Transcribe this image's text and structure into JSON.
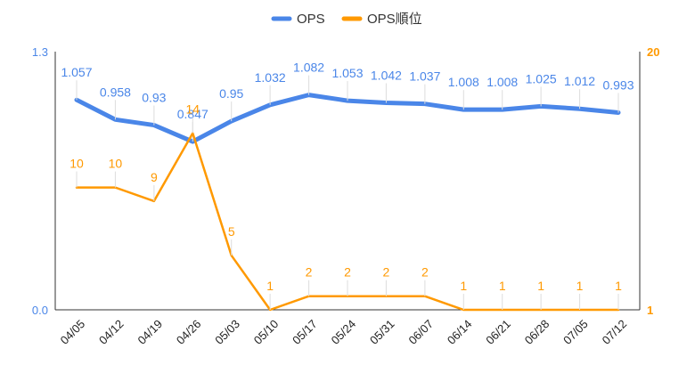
{
  "chart_data": {
    "type": "line",
    "categories": [
      "04/05",
      "04/12",
      "04/19",
      "04/26",
      "05/03",
      "05/10",
      "05/17",
      "05/24",
      "05/31",
      "06/07",
      "06/14",
      "06/21",
      "06/28",
      "07/05",
      "07/12"
    ],
    "series": [
      {
        "name": "OPS",
        "axis": "left",
        "color": "#4a86e8",
        "values": [
          1.057,
          0.958,
          0.93,
          0.847,
          0.95,
          1.032,
          1.082,
          1.053,
          1.042,
          1.037,
          1.008,
          1.008,
          1.025,
          1.012,
          0.993
        ],
        "labels": [
          "1.057",
          "0.958",
          "0.93",
          "0.847",
          "0.95",
          "1.032",
          "1.082",
          "1.053",
          "1.042",
          "1.037",
          "1.008",
          "1.008",
          "1.025",
          "1.012",
          "0.993"
        ]
      },
      {
        "name": "OPS順位",
        "axis": "right",
        "color": "#ff9900",
        "values": [
          10,
          10,
          9,
          14,
          5,
          1,
          2,
          2,
          2,
          2,
          1,
          1,
          1,
          1,
          1
        ],
        "labels": [
          "10",
          "10",
          "9",
          "14",
          "5",
          "1",
          "2",
          "2",
          "2",
          "2",
          "1",
          "1",
          "1",
          "1",
          "1"
        ]
      }
    ],
    "left_axis": {
      "min": 0.0,
      "max": 1.3,
      "ticks": [
        "0.0",
        "1.3"
      ],
      "color": "#4a86e8"
    },
    "right_axis": {
      "min": 1,
      "max": 20,
      "reversed": true,
      "ticks": [
        "1",
        "20"
      ],
      "color": "#ff9900"
    },
    "legend": "top-center",
    "grid": false,
    "xlabel": "",
    "ylabel": ""
  }
}
